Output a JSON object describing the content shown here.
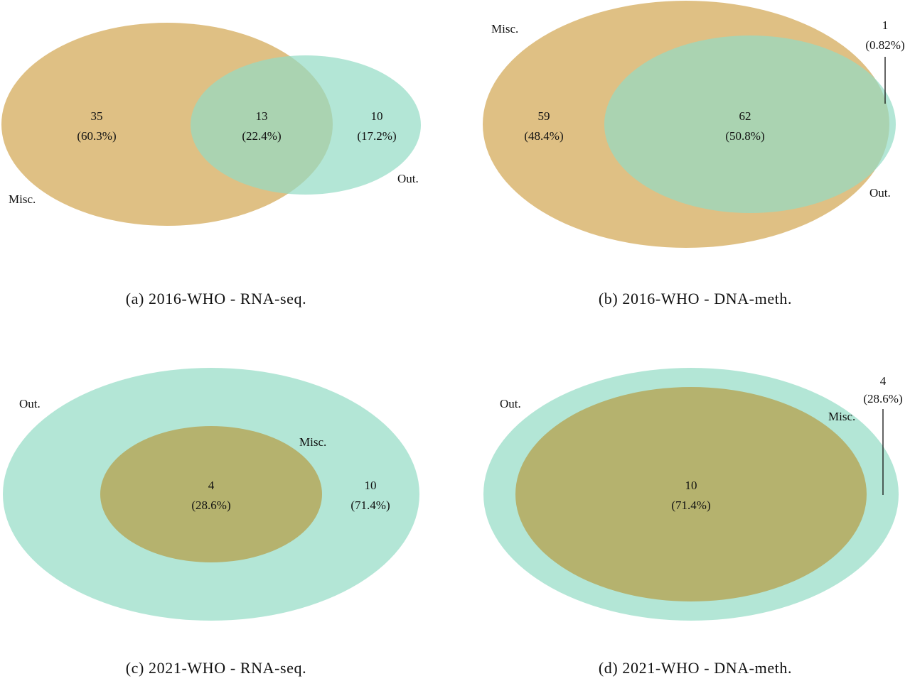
{
  "colors": {
    "misc": "#d9b56f",
    "out": "#93dcc4",
    "overlap": "#9bc58e",
    "overlap_inner": "#b5b26e"
  },
  "panels": [
    {
      "caption": "(a) 2016-WHO - RNA-seq.",
      "set_labels": {
        "misc": "Misc.",
        "out": "Out."
      },
      "regions": [
        {
          "count": "35",
          "percent": "(60.3%)"
        },
        {
          "count": "13",
          "percent": "(22.4%)"
        },
        {
          "count": "10",
          "percent": "(17.2%)"
        }
      ]
    },
    {
      "caption": "(b) 2016-WHO - DNA-meth.",
      "set_labels": {
        "misc": "Misc.",
        "out": "Out."
      },
      "regions": [
        {
          "count": "59",
          "percent": "(48.4%)"
        },
        {
          "count": "62",
          "percent": "(50.8%)"
        },
        {
          "count": "1",
          "percent": "(0.82%)"
        }
      ]
    },
    {
      "caption": "(c) 2021-WHO - RNA-seq.",
      "set_labels": {
        "misc": "Misc.",
        "out": "Out."
      },
      "regions": [
        {
          "count": "4",
          "percent": "(28.6%)"
        },
        {
          "count": "10",
          "percent": "(71.4%)"
        }
      ]
    },
    {
      "caption": "(d) 2021-WHO - DNA-meth.",
      "set_labels": {
        "misc": "Misc.",
        "out": "Out."
      },
      "regions": [
        {
          "count": "4",
          "percent": "(28.6%)"
        },
        {
          "count": "10",
          "percent": "(71.4%)"
        }
      ]
    }
  ]
}
